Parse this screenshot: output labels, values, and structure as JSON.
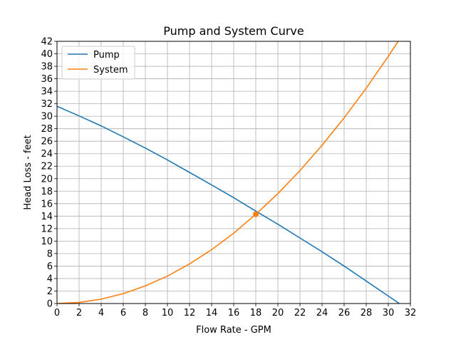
{
  "chart_data": {
    "type": "line",
    "title": "Pump and System Curve",
    "xlabel": "Flow Rate - GPM",
    "ylabel": "Head Loss - feet",
    "xlim": [
      0,
      32
    ],
    "ylim": [
      0,
      42
    ],
    "x_ticks": [
      0,
      2,
      4,
      6,
      8,
      10,
      12,
      14,
      16,
      18,
      20,
      22,
      24,
      26,
      28,
      30,
      32
    ],
    "y_ticks": [
      0,
      2,
      4,
      6,
      8,
      10,
      12,
      14,
      16,
      18,
      20,
      22,
      24,
      26,
      28,
      30,
      32,
      34,
      36,
      38,
      40,
      42
    ],
    "grid": true,
    "legend_position": "top-left",
    "series": [
      {
        "name": "Pump",
        "color": "#1f77b4",
        "x": [
          0,
          2,
          4,
          6,
          8,
          10,
          12,
          14,
          16,
          18,
          20,
          22,
          24,
          26,
          28,
          30,
          31
        ],
        "y": [
          31.6,
          30.05,
          28.45,
          26.7,
          24.9,
          23.0,
          21.0,
          19.0,
          16.95,
          14.8,
          12.7,
          10.5,
          8.3,
          6.0,
          3.6,
          1.2,
          0
        ]
      },
      {
        "name": "System",
        "color": "#ff7f0e",
        "x": [
          0,
          2,
          4,
          6,
          8,
          10,
          12,
          14,
          16,
          18,
          20,
          22,
          24,
          26,
          28,
          30,
          31
        ],
        "y": [
          0,
          0.18,
          0.7,
          1.58,
          2.82,
          4.4,
          6.34,
          8.63,
          11.27,
          14.3,
          17.6,
          21.3,
          25.35,
          29.75,
          34.5,
          39.6,
          42.3
        ]
      }
    ],
    "intersection": {
      "x": 18,
      "y": 14.3,
      "color": "#ff7f0e"
    }
  }
}
